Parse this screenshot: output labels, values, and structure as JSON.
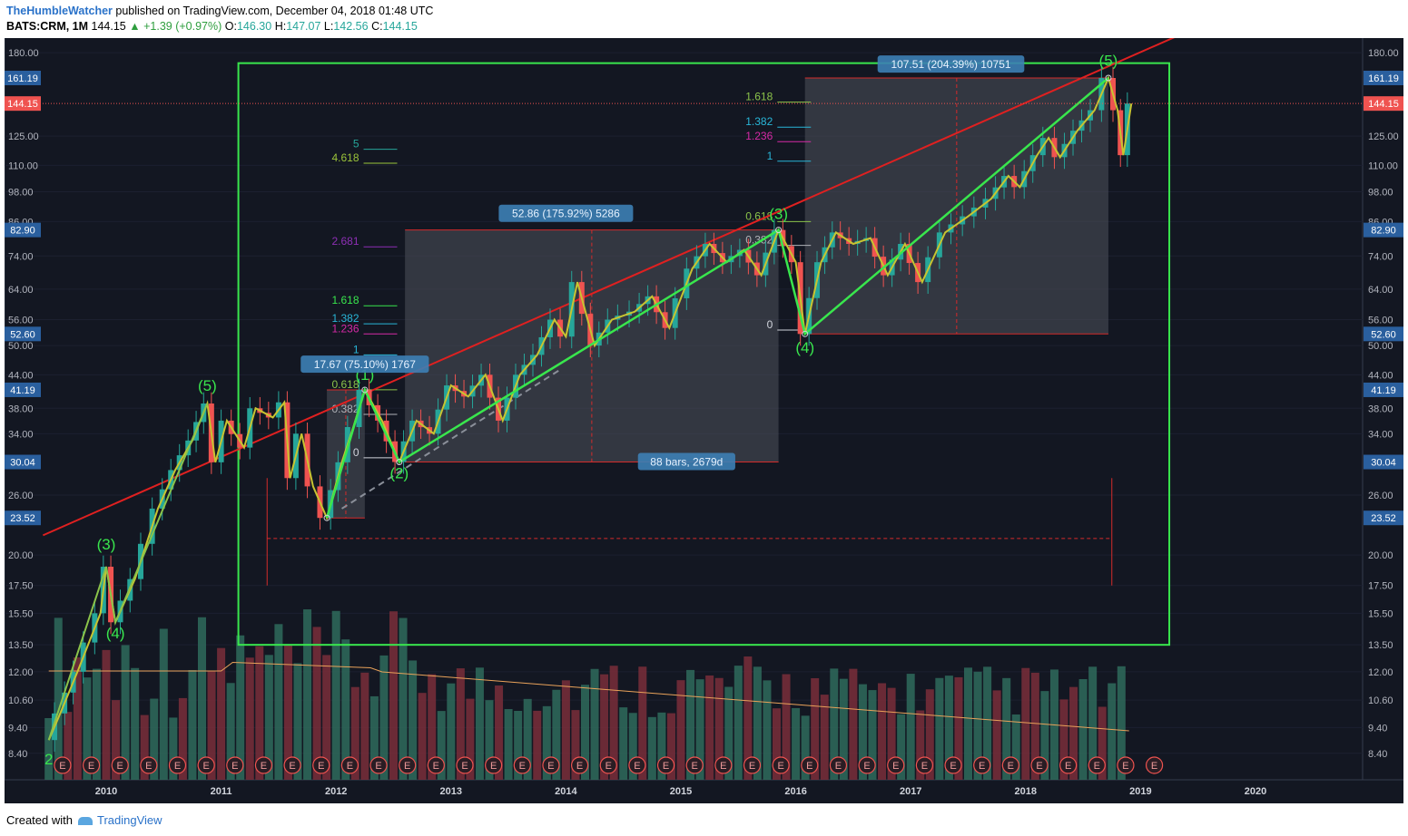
{
  "header": {
    "author": "TheHumbleWatcher",
    "published": "published on TradingView.com, December 04, 2018 01:48 UTC",
    "symbol": "BATS:CRM, 1M",
    "last": "144.15",
    "change": "+1.39 (+0.97%)",
    "o_label": "O:",
    "o_value": "146.30",
    "h_label": "H:",
    "h_value": "147.07",
    "l_label": "L:",
    "l_value": "142.56",
    "c_label": "C:",
    "c_value": "144.15"
  },
  "footer": {
    "created": "Created with",
    "brand": "TradingView"
  },
  "colors": {
    "background": "#131722",
    "up": "#26a69a",
    "down": "#ef5350",
    "trendline": "#e02020",
    "wave": "#39e64d",
    "zigzag": "#c8c431",
    "box": "#39e64d"
  },
  "chart_data": {
    "type": "candlestick",
    "scale": "log",
    "ylim": [
      7.6,
      195
    ],
    "x_ticks": [
      "2010",
      "2011",
      "2012",
      "2013",
      "2014",
      "2015",
      "2016",
      "2017",
      "2018",
      "2019",
      "2020"
    ],
    "y_ticks": [
      "180.00",
      "125.00",
      "110.00",
      "98.00",
      "86.00",
      "74.00",
      "64.00",
      "56.00",
      "50.00",
      "44.00",
      "38.00",
      "34.00",
      "26.00",
      "20.00",
      "17.50",
      "15.50",
      "13.50",
      "12.00",
      "10.60",
      "9.40",
      "8.40"
    ],
    "y_price_tags": [
      {
        "label": "161.19",
        "value": 161.19,
        "color": "#2a5f9e"
      },
      {
        "label": "144.15",
        "value": 144.15,
        "color": "#ef5350"
      },
      {
        "label": "82.90",
        "value": 82.9,
        "color": "#2a5f9e"
      },
      {
        "label": "52.60",
        "value": 52.6,
        "color": "#2a5f9e"
      },
      {
        "label": "41.19",
        "value": 41.19,
        "color": "#2a5f9e"
      },
      {
        "label": "30.04",
        "value": 30.04,
        "color": "#2a5f9e"
      },
      {
        "label": "23.52",
        "value": 23.52,
        "color": "#2a5f9e"
      }
    ],
    "current_price": 144.15,
    "close_path": [
      {
        "t": 2009.5,
        "v": 8.9
      },
      {
        "t": 2009.6,
        "v": 10.0
      },
      {
        "t": 2009.75,
        "v": 12.0
      },
      {
        "t": 2009.95,
        "v": 15.5
      },
      {
        "t": 2010.0,
        "v": 19.0
      },
      {
        "t": 2010.08,
        "v": 14.9
      },
      {
        "t": 2010.25,
        "v": 18.0
      },
      {
        "t": 2010.45,
        "v": 24.5
      },
      {
        "t": 2010.6,
        "v": 29.0
      },
      {
        "t": 2010.75,
        "v": 33.0
      },
      {
        "t": 2010.88,
        "v": 38.8
      },
      {
        "t": 2010.95,
        "v": 30.0
      },
      {
        "t": 2011.05,
        "v": 36.0
      },
      {
        "t": 2011.2,
        "v": 32.0
      },
      {
        "t": 2011.3,
        "v": 38.0
      },
      {
        "t": 2011.45,
        "v": 36.5
      },
      {
        "t": 2011.55,
        "v": 39.0
      },
      {
        "t": 2011.6,
        "v": 28.0
      },
      {
        "t": 2011.7,
        "v": 34.0
      },
      {
        "t": 2011.8,
        "v": 27.0
      },
      {
        "t": 2011.92,
        "v": 23.52
      },
      {
        "t": 2012.05,
        "v": 30.0
      },
      {
        "t": 2012.15,
        "v": 35.0
      },
      {
        "t": 2012.25,
        "v": 41.19
      },
      {
        "t": 2012.4,
        "v": 36.0
      },
      {
        "t": 2012.55,
        "v": 30.04
      },
      {
        "t": 2012.7,
        "v": 36.0
      },
      {
        "t": 2012.85,
        "v": 34.0
      },
      {
        "t": 2013.0,
        "v": 42.0
      },
      {
        "t": 2013.15,
        "v": 40.0
      },
      {
        "t": 2013.3,
        "v": 44.0
      },
      {
        "t": 2013.45,
        "v": 36.0
      },
      {
        "t": 2013.6,
        "v": 44.0
      },
      {
        "t": 2013.75,
        "v": 48.0
      },
      {
        "t": 2013.9,
        "v": 56.0
      },
      {
        "t": 2014.0,
        "v": 52.0
      },
      {
        "t": 2014.1,
        "v": 66.0
      },
      {
        "t": 2014.25,
        "v": 50.0
      },
      {
        "t": 2014.4,
        "v": 56.0
      },
      {
        "t": 2014.6,
        "v": 58.0
      },
      {
        "t": 2014.75,
        "v": 62.0
      },
      {
        "t": 2014.9,
        "v": 54.0
      },
      {
        "t": 2015.1,
        "v": 70.0
      },
      {
        "t": 2015.25,
        "v": 78.0
      },
      {
        "t": 2015.4,
        "v": 72.0
      },
      {
        "t": 2015.55,
        "v": 76.0
      },
      {
        "t": 2015.7,
        "v": 68.0
      },
      {
        "t": 2015.85,
        "v": 82.9
      },
      {
        "t": 2016.0,
        "v": 72.0
      },
      {
        "t": 2016.08,
        "v": 52.6
      },
      {
        "t": 2016.22,
        "v": 72.0
      },
      {
        "t": 2016.35,
        "v": 82.0
      },
      {
        "t": 2016.5,
        "v": 78.0
      },
      {
        "t": 2016.65,
        "v": 80.0
      },
      {
        "t": 2016.8,
        "v": 68.0
      },
      {
        "t": 2016.95,
        "v": 78.0
      },
      {
        "t": 2017.1,
        "v": 66.0
      },
      {
        "t": 2017.3,
        "v": 82.0
      },
      {
        "t": 2017.5,
        "v": 88.0
      },
      {
        "t": 2017.7,
        "v": 95.0
      },
      {
        "t": 2017.85,
        "v": 105.0
      },
      {
        "t": 2017.95,
        "v": 100.0
      },
      {
        "t": 2018.1,
        "v": 115.0
      },
      {
        "t": 2018.2,
        "v": 124.0
      },
      {
        "t": 2018.3,
        "v": 114.0
      },
      {
        "t": 2018.45,
        "v": 128.0
      },
      {
        "t": 2018.6,
        "v": 140.0
      },
      {
        "t": 2018.72,
        "v": 161.19
      },
      {
        "t": 2018.8,
        "v": 140.0
      },
      {
        "t": 2018.85,
        "v": 115.0
      },
      {
        "t": 2018.92,
        "v": 144.15
      }
    ],
    "wave_labels": [
      {
        "label": "(3)",
        "t": 2010.0,
        "v": 20.5
      },
      {
        "label": "(4)",
        "t": 2010.08,
        "v": 13.9
      },
      {
        "label": "(5)",
        "t": 2010.88,
        "v": 41.0
      },
      {
        "label": "(1)",
        "t": 2012.25,
        "v": 43.0
      },
      {
        "label": "(2)",
        "t": 2012.55,
        "v": 28.0
      },
      {
        "label": "(3)",
        "t": 2015.85,
        "v": 87.0
      },
      {
        "label": "(4)",
        "t": 2016.08,
        "v": 48.5
      },
      {
        "label": "(5)",
        "t": 2018.72,
        "v": 170.0
      },
      {
        "label": "2",
        "t": 2009.5,
        "v": 8.0
      }
    ],
    "wave_line": [
      {
        "t": 2011.92,
        "v": 23.52
      },
      {
        "t": 2012.25,
        "v": 41.19
      },
      {
        "t": 2012.55,
        "v": 30.04
      },
      {
        "t": 2015.85,
        "v": 82.9
      },
      {
        "t": 2016.08,
        "v": 52.6
      },
      {
        "t": 2018.72,
        "v": 161.19
      }
    ],
    "measurements": [
      {
        "label": "17.67 (75.10%) 1767",
        "t": 2012.25,
        "v": 46.0
      },
      {
        "label": "52.86 (175.92%) 5286",
        "t": 2014.0,
        "v": 89.0
      },
      {
        "label": "107.51 (204.39%) 10751",
        "t": 2017.35,
        "v": 171.0
      },
      {
        "label": "88 bars, 2679d",
        "t": 2015.05,
        "v": 30.04
      }
    ],
    "fib_levels": [
      {
        "label": "5",
        "t": 2012.2,
        "v": 118,
        "color": "#26a69a"
      },
      {
        "label": "4.618",
        "t": 2012.2,
        "v": 111,
        "color": "#9bc43a"
      },
      {
        "label": "2.681",
        "t": 2012.2,
        "v": 77,
        "color": "#8e2fb5"
      },
      {
        "label": "1.618",
        "t": 2012.2,
        "v": 59.5,
        "color": "#39e64d"
      },
      {
        "label": "1.382",
        "t": 2012.2,
        "v": 55.0,
        "color": "#29b6d8"
      },
      {
        "label": "1.236",
        "t": 2012.2,
        "v": 52.6,
        "color": "#d62aa6"
      },
      {
        "label": "1",
        "t": 2012.2,
        "v": 48.0,
        "color": "#29b6d8"
      },
      {
        "label": "0.618",
        "t": 2012.2,
        "v": 41.2,
        "color": "#8bc34a"
      },
      {
        "label": "0.382",
        "t": 2012.2,
        "v": 37.0,
        "color": "#b0b3b8"
      },
      {
        "label": "0",
        "t": 2012.2,
        "v": 30.6,
        "color": "#d1d4dc"
      },
      {
        "label": "1.618",
        "t": 2015.8,
        "v": 145,
        "color": "#8bc34a"
      },
      {
        "label": "1.382",
        "t": 2015.8,
        "v": 130,
        "color": "#29b6d8"
      },
      {
        "label": "1.236",
        "t": 2015.8,
        "v": 122,
        "color": "#d62aa6"
      },
      {
        "label": "1",
        "t": 2015.8,
        "v": 112,
        "color": "#29b6d8"
      },
      {
        "label": "0.618",
        "t": 2015.8,
        "v": 86.0,
        "color": "#8bc34a"
      },
      {
        "label": "0.382",
        "t": 2015.8,
        "v": 77.5,
        "color": "#b0b3b8"
      },
      {
        "label": "0",
        "t": 2015.8,
        "v": 53.5,
        "color": "#d1d4dc"
      }
    ],
    "earnings_markers": [
      "E",
      "E",
      "E",
      "E",
      "E",
      "E",
      "E",
      "E",
      "E",
      "E",
      "E",
      "E",
      "E",
      "E",
      "E",
      "E",
      "E",
      "E",
      "E",
      "E",
      "E",
      "E",
      "E",
      "E",
      "E",
      "E",
      "E",
      "E",
      "E",
      "E",
      "E",
      "E",
      "E",
      "E",
      "E",
      "E",
      "E",
      "E",
      "E",
      "E",
      "E"
    ]
  }
}
